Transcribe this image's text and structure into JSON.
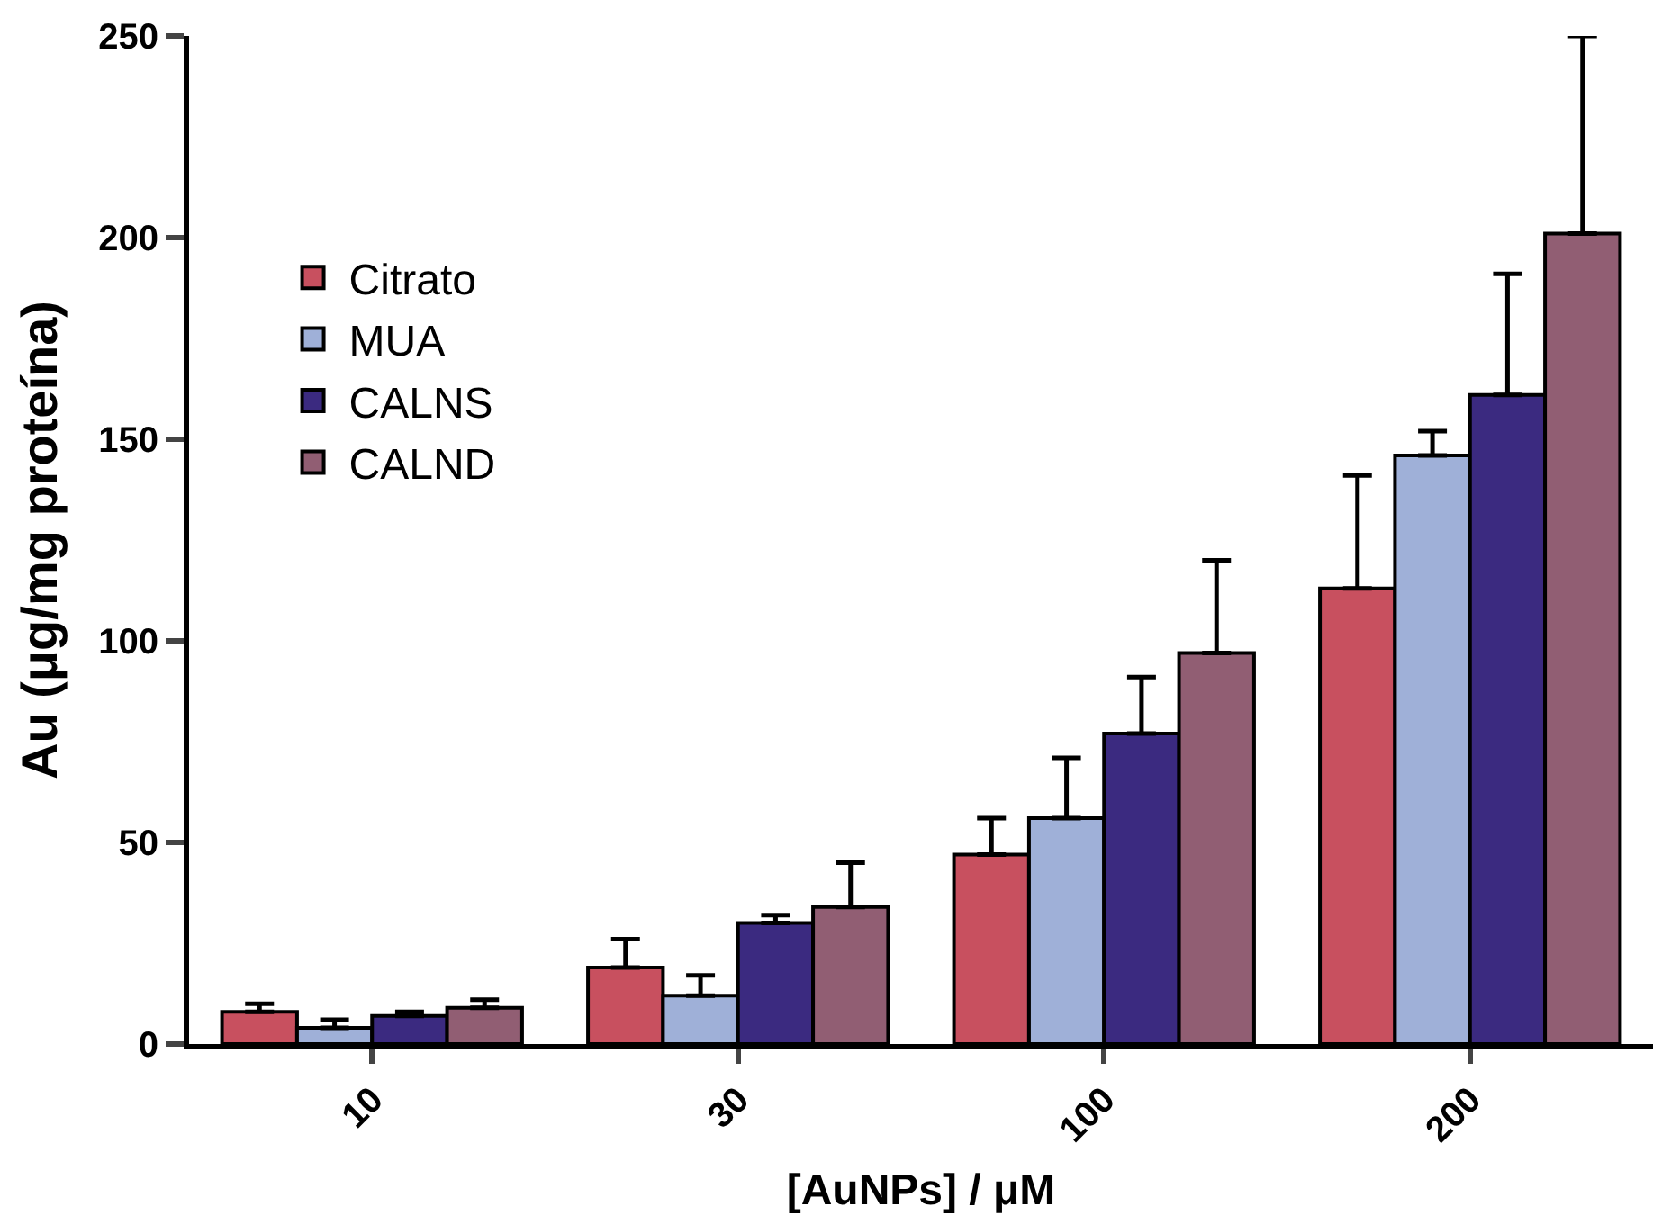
{
  "chart_data": {
    "type": "bar",
    "xlabel": "[AuNPs] / μM",
    "ylabel": "Au (μg/mg proteína)",
    "categories": [
      "10",
      "30",
      "100",
      "200"
    ],
    "series": [
      {
        "name": "Citrato",
        "color": "#c8505f",
        "values": [
          8,
          19,
          47,
          113
        ],
        "errors": [
          [
            8,
            10
          ],
          [
            19,
            26
          ],
          [
            47,
            56
          ],
          [
            113,
            141
          ]
        ]
      },
      {
        "name": "MUA",
        "color": "#9fb0d8",
        "values": [
          4,
          12,
          56,
          146
        ],
        "errors": [
          [
            4,
            6
          ],
          [
            12,
            17
          ],
          [
            56,
            71
          ],
          [
            146,
            152
          ]
        ]
      },
      {
        "name": "CALNS",
        "color": "#3b2a80",
        "values": [
          7,
          30,
          77,
          161
        ],
        "errors": [
          [
            7,
            8
          ],
          [
            30,
            32
          ],
          [
            77,
            91
          ],
          [
            161,
            191
          ]
        ]
      },
      {
        "name": "CALND",
        "color": "#915e73",
        "values": [
          9,
          34,
          97,
          201
        ],
        "errors": [
          [
            9,
            11
          ],
          [
            34,
            45
          ],
          [
            97,
            120
          ],
          [
            201,
            250
          ]
        ]
      }
    ],
    "ylim": [
      0,
      250
    ],
    "yticks": [
      0,
      50,
      100,
      150,
      200,
      250
    ],
    "grid": false,
    "legend": "top left"
  }
}
